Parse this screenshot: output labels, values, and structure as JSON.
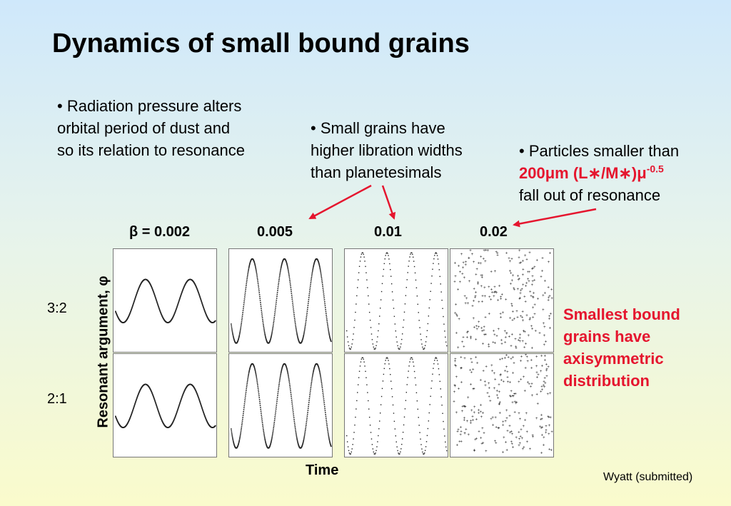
{
  "title": "Dynamics of small bound grains",
  "bullets": [
    {
      "lines": [
        "• Radiation pressure alters",
        "orbital period of dust and",
        "so its relation to resonance"
      ]
    },
    {
      "lines": [
        "• Small grains have",
        "higher libration widths",
        "than planetesimals"
      ]
    },
    {
      "line1": "• Particles smaller than",
      "formula_main": "200μm (L∗/M∗)μ",
      "formula_exp": "-0.5",
      "line3": "fall out of resonance"
    }
  ],
  "colors": {
    "highlight": "#e5152e",
    "trace": "#222222"
  },
  "chart_data": {
    "type": "scatter",
    "xlabel": "Time",
    "ylabel": "Resonant argument, φ",
    "columns": [
      "β = 0.002",
      "0.005",
      "0.01",
      "0.02"
    ],
    "beta": [
      0.002,
      0.005,
      0.01,
      0.02
    ],
    "rows": [
      "3:2",
      "2:1"
    ],
    "oscillation_cycles": [
      2.3,
      3.2,
      4.2,
      0
    ],
    "oscillation_amplitude_fraction": [
      0.21,
      0.41,
      0.47,
      0
    ]
  },
  "side_note": {
    "lines": [
      "Smallest bound",
      "grains have",
      "axisymmetric",
      "distribution"
    ]
  },
  "credit": "Wyatt (submitted)"
}
